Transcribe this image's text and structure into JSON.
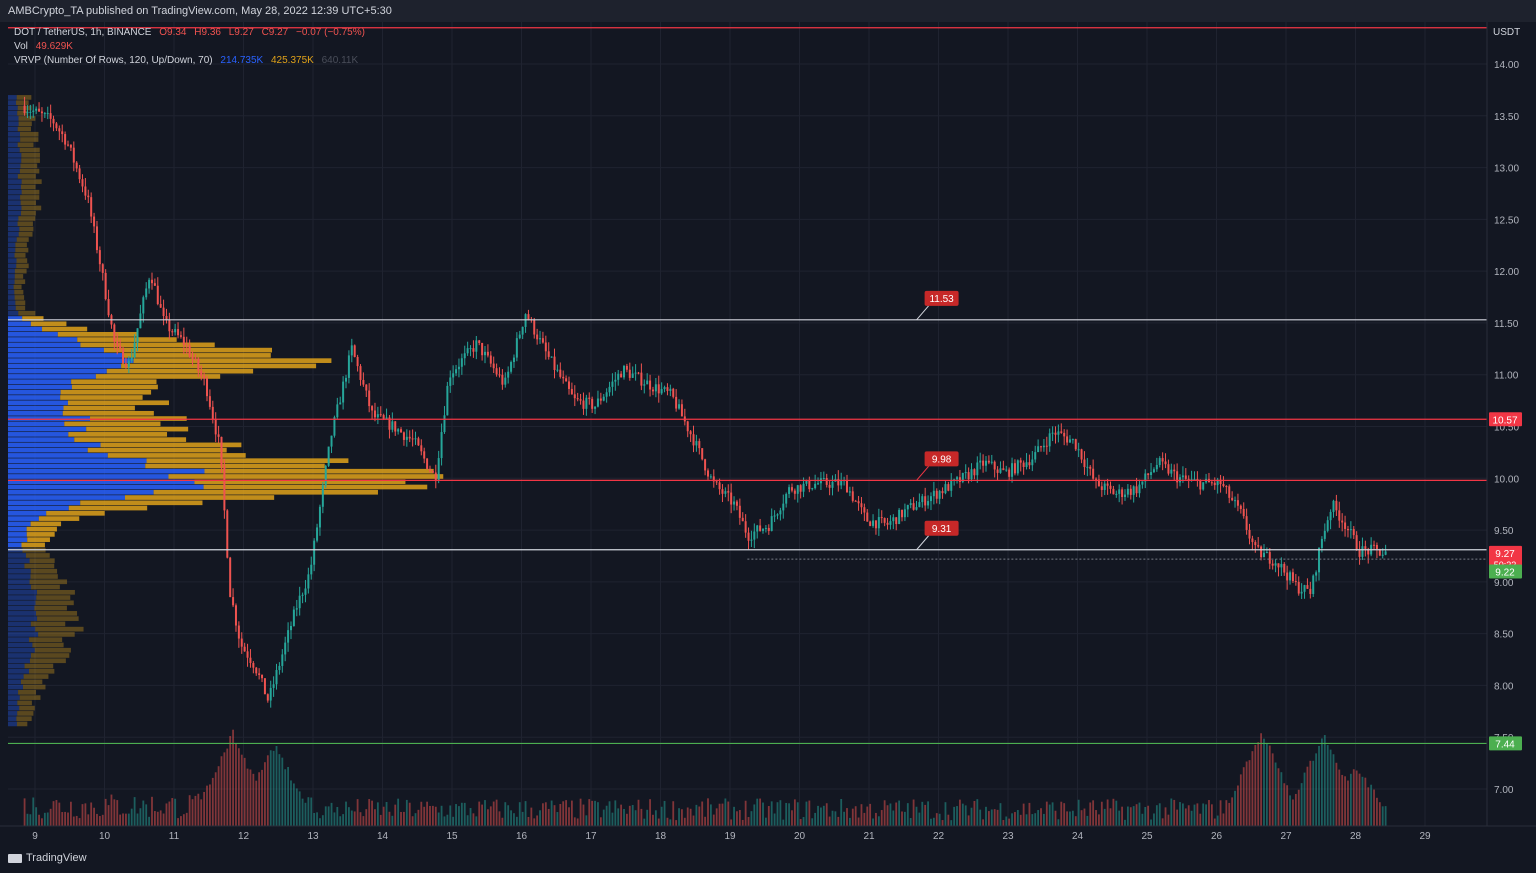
{
  "header": {
    "publish_line": "AMBCrypto_TA published on TradingView.com, May 28, 2022 12:39 UTC+5:30"
  },
  "legend": {
    "symbol": "DOT / TetherUS, 1h, BINANCE",
    "open": "O9.34",
    "high": "H9.36",
    "low": "L9.27",
    "close": "C9.27",
    "change": "−0.07 (−0.75%)",
    "vol_label": "Vol",
    "vol_value": "49.629K",
    "vrvp_label": "VRVP (Number Of Rows, 120, Up/Down, 70)",
    "vrvp_up": "214.735K",
    "vrvp_down": "425.375K",
    "vrvp_total": "640.11K"
  },
  "footer": {
    "brand": "TradingView"
  },
  "colors": {
    "background": "#131722",
    "grid": "#1f2330",
    "up": "#26a69a",
    "down": "#ef5350",
    "resistance_red": "#f23645",
    "support_white": "#d1d4dc",
    "support_green": "#4caf50",
    "vrvp_up": "#2962ff",
    "vrvp_down": "#e0a21a",
    "callout": "#c62828"
  },
  "chart_data": {
    "type": "candlestick",
    "interval": "1h",
    "quote_currency": "USDT",
    "y_ticks": [
      "7.00",
      "7.50",
      "8.00",
      "8.50",
      "9.00",
      "9.50",
      "10.00",
      "10.50",
      "11.00",
      "11.50",
      "12.00",
      "12.50",
      "13.00",
      "13.50",
      "14.00"
    ],
    "ylim": [
      6.65,
      14.55
    ],
    "x_ticks": [
      "9",
      "10",
      "11",
      "12",
      "13",
      "14",
      "15",
      "16",
      "17",
      "18",
      "19",
      "20",
      "21",
      "22",
      "23",
      "24",
      "25",
      "26",
      "27",
      "28",
      "29"
    ],
    "levels": [
      {
        "price": 11.53,
        "label": "11.53",
        "color": "white",
        "callout_day": 21.8
      },
      {
        "price": 10.57,
        "label": "10.57",
        "color": "red",
        "axis_label": true
      },
      {
        "price": 9.98,
        "label": "9.98",
        "color": "red",
        "callout_day": 21.8
      },
      {
        "price": 9.31,
        "label": "9.31",
        "color": "white",
        "callout_day": 21.8
      },
      {
        "price": 7.44,
        "label": "7.44",
        "color": "green",
        "axis_label": true
      },
      {
        "price": 14.35,
        "color": "red"
      }
    ],
    "last_price": {
      "value": "9.27",
      "countdown": "50:22"
    },
    "bid_price": "9.22",
    "vol_last": "49.629K",
    "price_path": [
      [
        8.85,
        13.6
      ],
      [
        9.3,
        13.45
      ],
      [
        9.5,
        13.25
      ],
      [
        9.8,
        12.7
      ],
      [
        10.0,
        12.0
      ],
      [
        10.2,
        11.25
      ],
      [
        10.4,
        11.1
      ],
      [
        10.7,
        12.0
      ],
      [
        10.9,
        11.5
      ],
      [
        11.2,
        11.3
      ],
      [
        11.5,
        10.9
      ],
      [
        11.7,
        10.3
      ],
      [
        11.85,
        8.9
      ],
      [
        12.0,
        8.4
      ],
      [
        12.2,
        8.2
      ],
      [
        12.4,
        7.85
      ],
      [
        12.6,
        8.3
      ],
      [
        12.8,
        8.75
      ],
      [
        13.0,
        9.1
      ],
      [
        13.3,
        10.4
      ],
      [
        13.6,
        11.25
      ],
      [
        13.9,
        10.6
      ],
      [
        14.2,
        10.5
      ],
      [
        14.5,
        10.35
      ],
      [
        14.8,
        10.0
      ],
      [
        15.0,
        11.0
      ],
      [
        15.4,
        11.3
      ],
      [
        15.8,
        10.9
      ],
      [
        16.1,
        11.6
      ],
      [
        16.4,
        11.2
      ],
      [
        16.8,
        10.75
      ],
      [
        17.1,
        10.7
      ],
      [
        17.5,
        11.05
      ],
      [
        17.9,
        10.9
      ],
      [
        18.2,
        10.8
      ],
      [
        18.5,
        10.4
      ],
      [
        18.8,
        9.95
      ],
      [
        19.1,
        9.75
      ],
      [
        19.3,
        9.45
      ],
      [
        19.6,
        9.55
      ],
      [
        19.9,
        9.9
      ],
      [
        20.3,
        9.95
      ],
      [
        20.7,
        9.95
      ],
      [
        21.0,
        9.6
      ],
      [
        21.3,
        9.55
      ],
      [
        21.6,
        9.7
      ],
      [
        22.0,
        9.85
      ],
      [
        22.4,
        10.0
      ],
      [
        22.7,
        10.15
      ],
      [
        23.0,
        10.05
      ],
      [
        23.4,
        10.2
      ],
      [
        23.7,
        10.45
      ],
      [
        24.0,
        10.35
      ],
      [
        24.3,
        9.95
      ],
      [
        24.6,
        9.85
      ],
      [
        24.9,
        9.9
      ],
      [
        25.2,
        10.15
      ],
      [
        25.5,
        10.0
      ],
      [
        25.8,
        9.95
      ],
      [
        26.1,
        9.95
      ],
      [
        26.4,
        9.65
      ],
      [
        26.6,
        9.3
      ],
      [
        26.9,
        9.2
      ],
      [
        27.2,
        8.95
      ],
      [
        27.4,
        8.9
      ],
      [
        27.55,
        9.4
      ],
      [
        27.7,
        9.75
      ],
      [
        27.9,
        9.55
      ],
      [
        28.1,
        9.3
      ],
      [
        28.35,
        9.3
      ],
      [
        28.45,
        9.27
      ]
    ],
    "volume_spikes": [
      [
        11.85,
        100
      ],
      [
        12.45,
        85
      ],
      [
        26.65,
        125
      ],
      [
        27.55,
        120
      ],
      [
        28.0,
        75
      ]
    ],
    "volume_ylim": [
      0,
      130
    ]
  }
}
